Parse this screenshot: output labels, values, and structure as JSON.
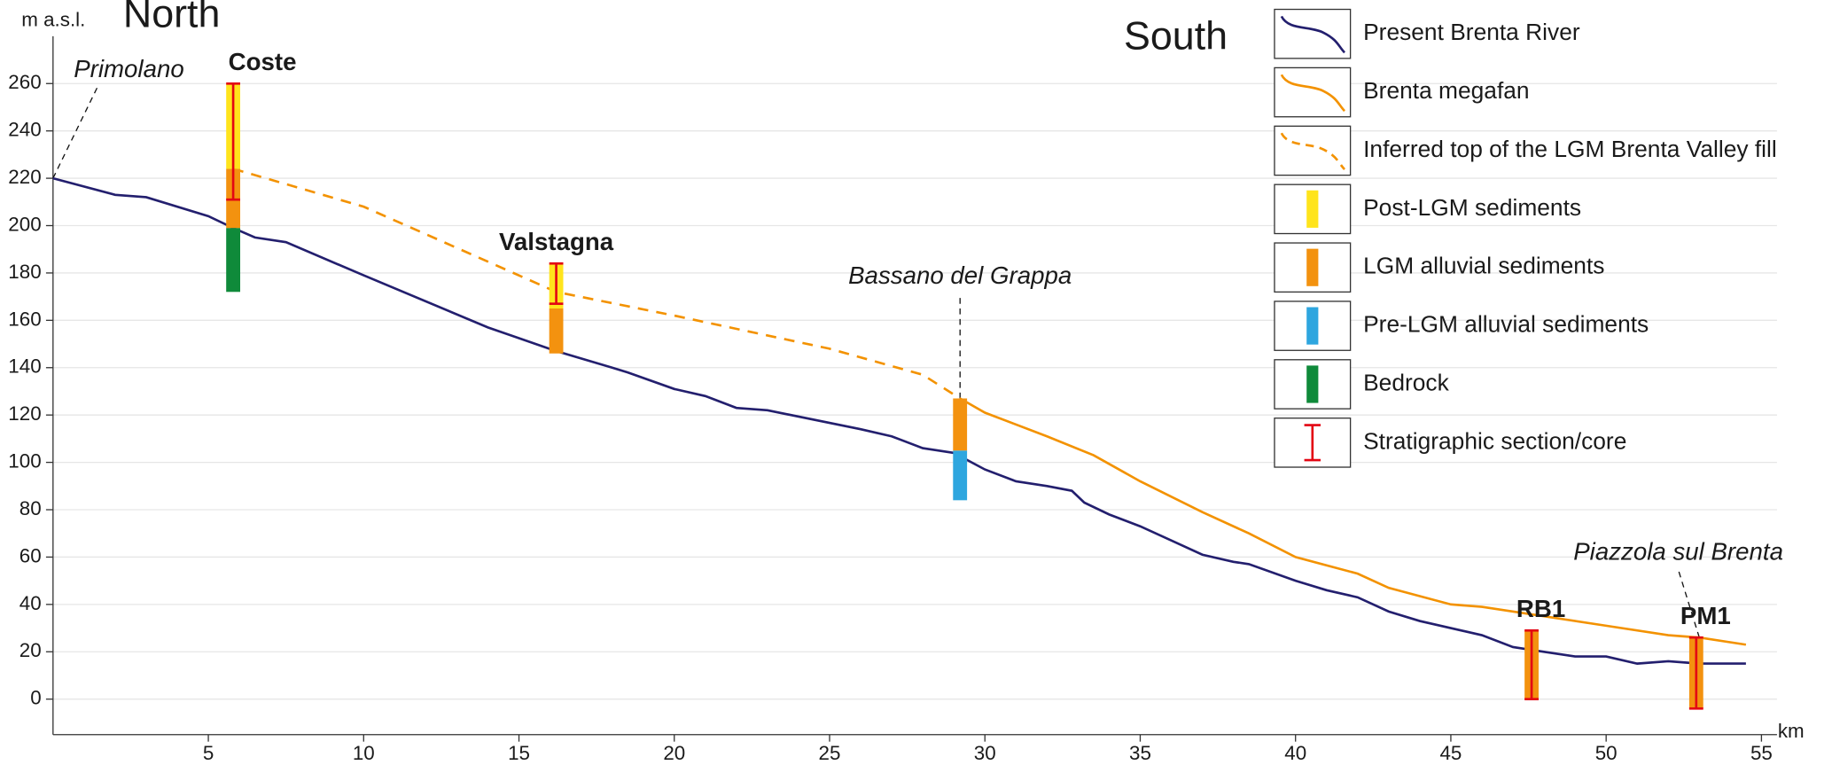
{
  "chart_data": {
    "type": "profile",
    "north_label": "North",
    "south_label": "South",
    "y_label": "m a.s.l.",
    "x_label": "km",
    "xlim": [
      0,
      55.5
    ],
    "ylim": [
      -15,
      280
    ],
    "xticks": [
      5,
      10,
      15,
      20,
      25,
      30,
      35,
      40,
      45,
      50,
      55
    ],
    "yticks": [
      0,
      20,
      40,
      60,
      80,
      100,
      120,
      140,
      160,
      180,
      200,
      220,
      240,
      260
    ],
    "grid": true,
    "series": [
      {
        "name": "Present Brenta River",
        "color": "#231f6e",
        "x": [
          0,
          2,
          3,
          5,
          5.8,
          6.5,
          7.5,
          10,
          14,
          16.2,
          18,
          18.5,
          20,
          21,
          22,
          23,
          26,
          27,
          28,
          29,
          30,
          31,
          32,
          32.8,
          33.2,
          34,
          35,
          36,
          37,
          38,
          38.5,
          40,
          41,
          42,
          43,
          44,
          45,
          46,
          47,
          48,
          49,
          50,
          51,
          52,
          53,
          54.5
        ],
        "values": [
          220,
          213,
          212,
          204,
          199,
          195,
          193,
          179,
          157,
          147,
          140,
          138,
          131,
          128,
          123,
          122,
          114,
          111,
          106,
          104,
          97,
          92,
          90,
          88,
          83,
          78,
          73,
          67,
          61,
          58,
          57,
          50,
          46,
          43,
          37,
          33,
          30,
          27,
          22,
          20,
          18,
          18,
          15,
          16,
          15,
          15
        ]
      },
      {
        "name": "Brenta megafan",
        "color": "#f39200",
        "x": [
          29.2,
          30,
          32,
          33.5,
          35,
          37,
          38.5,
          40,
          42,
          43,
          45,
          46,
          48,
          50,
          52,
          53,
          54.5
        ],
        "values": [
          127,
          121,
          111,
          103,
          92,
          79,
          70,
          60,
          53,
          47,
          40,
          39,
          35,
          31,
          27,
          26,
          23
        ]
      },
      {
        "name": "Inferred top of the LGM Brenta Valley fill",
        "color": "#f39200",
        "dashed": true,
        "x": [
          5.8,
          10,
          16.2,
          20,
          25,
          28,
          29.2
        ],
        "values": [
          224,
          208,
          172,
          162,
          148,
          137,
          127
        ]
      }
    ],
    "units": [
      {
        "name": "Post-LGM sediments",
        "color": "#ffe41c"
      },
      {
        "name": "LGM alluvial sediments",
        "color": "#f3920f"
      },
      {
        "name": "Pre-LGM alluvial sediments",
        "color": "#2ea6df"
      },
      {
        "name": "Bedrock",
        "color": "#0f8a3a"
      }
    ],
    "section": {
      "name": "Stratigraphic section/core",
      "color": "#e30613"
    },
    "logs": [
      {
        "label": "Coste",
        "x": 5.8,
        "layers": [
          {
            "unit": 3,
            "bottom": 172,
            "top": 199
          },
          {
            "unit": 1,
            "bottom": 199,
            "top": 224
          },
          {
            "unit": 0,
            "bottom": 224,
            "top": 260
          }
        ],
        "core": [
          211,
          260
        ]
      },
      {
        "label": "Valstagna",
        "x": 16.2,
        "layers": [
          {
            "unit": 1,
            "bottom": 146,
            "top": 165
          },
          {
            "unit": 0,
            "bottom": 165,
            "top": 184
          }
        ],
        "core": [
          167,
          184
        ]
      },
      {
        "x": 29.2,
        "layers": [
          {
            "unit": 2,
            "bottom": 84,
            "top": 105
          },
          {
            "unit": 1,
            "bottom": 105,
            "top": 127
          }
        ]
      },
      {
        "label": "RB1",
        "x": 47.6,
        "layers": [
          {
            "unit": 1,
            "bottom": 0,
            "top": 29
          }
        ],
        "core": [
          0,
          29
        ]
      },
      {
        "label": "PM1",
        "x": 52.9,
        "layers": [
          {
            "unit": 1,
            "bottom": -4,
            "top": 26
          }
        ],
        "core": [
          -4,
          26
        ]
      }
    ],
    "places": [
      {
        "text": "Primolano",
        "x": 0,
        "y": 220
      },
      {
        "text": "Bassano del Grappa",
        "x": 29.2,
        "y": 127
      },
      {
        "text": "Piazzola sul Brenta",
        "x": 53,
        "y": 26
      }
    ]
  }
}
